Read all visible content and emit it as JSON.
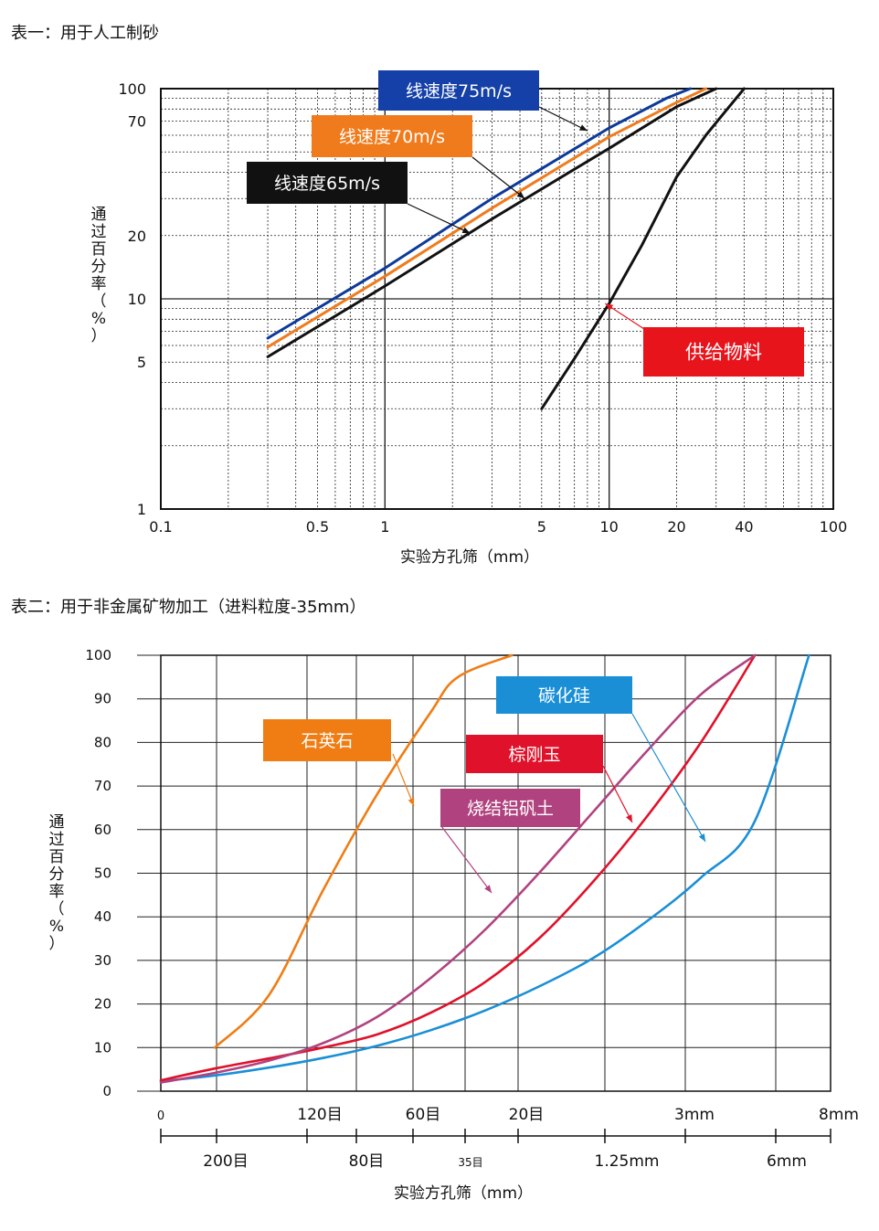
{
  "title1": "表一：用于人工制砂",
  "title2": "表二：用于非金属矿物加工（进料粒度-35mm）",
  "colors": {
    "blue": "#0d3a9a",
    "orange": "#f07b1c",
    "black": "#111111",
    "red": "#e8141c",
    "quartz": "#ef7d14",
    "sic": "#1a8fd6",
    "corundum": "#e0112a",
    "bauxite": "#b0437f"
  },
  "chart_data": [
    {
      "type": "line",
      "x_scale": "log",
      "y_scale": "log",
      "xlim": [
        0.1,
        100
      ],
      "ylim": [
        1,
        100
      ],
      "xlabel": "实验方孔筛（mm）",
      "ylabel_chars": [
        "通",
        "过",
        "百",
        "分",
        "率",
        "（",
        "%",
        "）"
      ],
      "x_ticks": [
        {
          "v": 0.1,
          "label": "0.1"
        },
        {
          "v": 0.5,
          "label": "0.5"
        },
        {
          "v": 1,
          "label": "1"
        },
        {
          "v": 5,
          "label": "5"
        },
        {
          "v": 10,
          "label": "10"
        },
        {
          "v": 20,
          "label": "20"
        },
        {
          "v": 40,
          "label": "40"
        },
        {
          "v": 100,
          "label": "100"
        }
      ],
      "y_ticks": [
        {
          "v": 1,
          "label": "1"
        },
        {
          "v": 5,
          "label": "5"
        },
        {
          "v": 10,
          "label": "10"
        },
        {
          "v": 20,
          "label": "20"
        },
        {
          "v": 70,
          "label": "70"
        },
        {
          "v": 100,
          "label": "100"
        }
      ],
      "series": [
        {
          "name": "线速度75m/s",
          "color": "#0d3a9a",
          "label_color": "#1440a8",
          "x": [
            0.3,
            1,
            3,
            10,
            18,
            23
          ],
          "y": [
            6.5,
            14,
            30,
            65,
            90,
            100
          ]
        },
        {
          "name": "线速度70m/s",
          "color": "#f07b1c",
          "label_color": "#f07b1c",
          "x": [
            0.3,
            1,
            3,
            10,
            20,
            27
          ],
          "y": [
            5.9,
            12.8,
            27,
            59,
            86,
            100
          ]
        },
        {
          "name": "线速度65m/s",
          "color": "#111111",
          "label_color": "#111111",
          "x": [
            0.3,
            1,
            3,
            10,
            20,
            30
          ],
          "y": [
            5.3,
            11.5,
            24,
            52,
            82,
            100
          ]
        },
        {
          "name": "供给物料",
          "color": "#111111",
          "label_color": "#e8141c",
          "x": [
            5,
            7,
            10,
            14,
            20,
            27,
            33,
            40
          ],
          "y": [
            3,
            5.2,
            9.5,
            18,
            38,
            60,
            78,
            100
          ]
        }
      ]
    },
    {
      "type": "line",
      "ylim": [
        0,
        100
      ],
      "xlabel": "实验方孔筛（mm）",
      "ylabel_chars": [
        "通",
        "过",
        "百",
        "分",
        "率",
        "（",
        "%",
        "）"
      ],
      "y_ticks": [
        0,
        10,
        20,
        30,
        40,
        50,
        60,
        70,
        80,
        90,
        100
      ],
      "x_ticks_top": [
        "0",
        "120目",
        "60目",
        "20目",
        "3mm",
        "8mm"
      ],
      "x_ticks_bottom": [
        "200目",
        "80目",
        "35目",
        "1.25mm",
        "6mm"
      ],
      "series": [
        {
          "name": "石英石",
          "color": "#ef7d14",
          "x": [
            1,
            2,
            3,
            4,
            5,
            5.5,
            6.5
          ],
          "y": [
            10,
            22,
            46,
            68,
            87,
            95,
            100
          ]
        },
        {
          "name": "碳化硅",
          "color": "#1a8fd6",
          "x": [
            0,
            1,
            2,
            3,
            4,
            5,
            6,
            7,
            8,
            9,
            10,
            11,
            12
          ],
          "y": [
            2.3,
            3.6,
            5.4,
            7.6,
            10.4,
            14,
            18.5,
            24,
            30.5,
            39,
            49,
            62,
            100
          ]
        },
        {
          "name": "棕刚玉",
          "color": "#e0112a",
          "x": [
            0,
            1,
            2,
            3,
            4,
            5,
            6,
            7,
            8,
            9,
            10,
            11
          ],
          "y": [
            2.5,
            5.2,
            7.5,
            10,
            13,
            18,
            25,
            35,
            48,
            63,
            80,
            100
          ]
        },
        {
          "name": "烧结铝矾土",
          "color": "#b0437f",
          "x": [
            0,
            1,
            2,
            3,
            4,
            5,
            6,
            7,
            8,
            9,
            10,
            11
          ],
          "y": [
            2,
            4.2,
            7,
            11,
            17,
            26,
            37,
            50,
            64,
            78,
            91,
            100
          ]
        }
      ]
    }
  ]
}
